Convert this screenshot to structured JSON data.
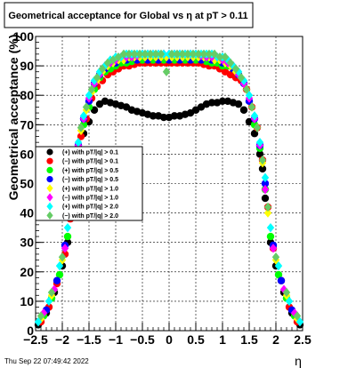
{
  "chart_data": {
    "type": "scatter",
    "title": "Geometrical acceptance for Global vs   η at pT > 0.11",
    "ylabel": "Geometrical acceptance (%)",
    "xlabel": "η",
    "xlim": [
      -2.5,
      2.5
    ],
    "ylim": [
      0,
      100
    ],
    "xticks": [
      "−2.5",
      "−2",
      "−1.5",
      "−1",
      "−0.5",
      "0",
      "0.5",
      "1",
      "1.5",
      "2",
      "2.5"
    ],
    "yticks": [
      "0",
      "10",
      "20",
      "30",
      "40",
      "50",
      "60",
      "70",
      "80",
      "90",
      "100"
    ],
    "grid": true,
    "legend_position": "left-middle",
    "timestamp": "Thu Sep 22 07:49:42 2022",
    "series": [
      {
        "name": "(+) with pT/|q| > 0.1",
        "color": "#000000",
        "marker": "circle",
        "x": [
          -2.45,
          -2.3,
          -2.15,
          -2.0,
          -1.9,
          -1.8,
          -1.75,
          -1.7,
          -1.6,
          -1.5,
          -1.4,
          -1.3,
          -1.2,
          -1.1,
          -1.0,
          -0.9,
          -0.8,
          -0.7,
          -0.6,
          -0.5,
          -0.4,
          -0.3,
          -0.2,
          -0.1,
          0.0,
          0.1,
          0.2,
          0.3,
          0.4,
          0.5,
          0.6,
          0.7,
          0.8,
          0.9,
          1.0,
          1.1,
          1.2,
          1.3,
          1.4,
          1.5,
          1.6,
          1.7,
          1.75,
          1.8,
          1.9,
          2.0,
          2.15,
          2.3,
          2.45
        ],
        "y": [
          2,
          6,
          13,
          22,
          30,
          45,
          55,
          60,
          67,
          71,
          75,
          77,
          78,
          77.5,
          77,
          76.5,
          76,
          75,
          74.5,
          74,
          73.5,
          73,
          73,
          72.5,
          72.5,
          73,
          73,
          73.5,
          74,
          75,
          76,
          77,
          77.5,
          77.5,
          78,
          78,
          77.5,
          77,
          75,
          71,
          67,
          60,
          55,
          45,
          30,
          22,
          13,
          6,
          2
        ]
      },
      {
        "name": "(−) with pT/|q| > 0.1",
        "color": "#ff0000",
        "marker": "circle",
        "x": [
          -2.4,
          -2.25,
          -2.1,
          -1.95,
          -1.85,
          -1.75,
          -1.65,
          -1.55,
          -1.45,
          -1.35,
          -1.25,
          -1.15,
          -1.05,
          -0.95,
          -0.85,
          -0.75,
          -0.65,
          -0.55,
          -0.45,
          -0.35,
          -0.25,
          -0.15,
          -0.05,
          0.05,
          0.15,
          0.25,
          0.35,
          0.45,
          0.55,
          0.65,
          0.75,
          0.85,
          0.95,
          1.05,
          1.15,
          1.25,
          1.35,
          1.45,
          1.55,
          1.65,
          1.75,
          1.85,
          1.95,
          2.1,
          2.25,
          2.4
        ],
        "y": [
          3,
          8,
          16,
          26,
          38,
          55,
          66,
          72,
          79,
          83,
          85,
          87,
          88,
          89,
          90,
          90,
          90.5,
          91,
          91,
          91,
          91,
          91,
          91,
          91,
          91,
          91,
          91,
          91,
          91,
          90.5,
          90,
          90,
          89,
          88,
          87,
          86,
          85,
          82,
          76,
          69,
          58,
          42,
          28,
          17,
          8,
          3
        ]
      },
      {
        "name": "(+) with pT/|q| > 0.5",
        "color": "#00ff00",
        "marker": "circle",
        "x": [
          -2.35,
          -2.2,
          -2.05,
          -1.9,
          -1.8,
          -1.7,
          -1.6,
          -1.5,
          -1.4,
          -1.3,
          -1.2,
          -1.1,
          -1.0,
          -0.9,
          -0.8,
          -0.7,
          -0.6,
          -0.5,
          -0.4,
          -0.3,
          -0.2,
          -0.1,
          0.0,
          0.1,
          0.2,
          0.3,
          0.4,
          0.5,
          0.6,
          0.7,
          0.8,
          0.9,
          1.0,
          1.1,
          1.2,
          1.3,
          1.4,
          1.5,
          1.6,
          1.7,
          1.8,
          1.9,
          2.05,
          2.2,
          2.35
        ],
        "y": [
          5,
          11,
          19,
          32,
          48,
          62,
          70,
          76,
          82,
          86,
          88,
          89,
          90,
          91,
          91,
          91.5,
          92,
          92,
          92,
          92,
          92,
          92,
          92,
          92,
          92,
          92,
          92,
          92,
          92,
          91.5,
          91,
          91,
          90,
          90,
          89,
          87,
          84,
          78,
          70,
          62,
          48,
          32,
          19,
          11,
          5
        ]
      },
      {
        "name": "(−) with pT/|q| > 0.5",
        "color": "#0000ff",
        "marker": "circle",
        "x": [
          -2.3,
          -2.1,
          -1.95,
          -1.8,
          -1.7,
          -1.6,
          -1.5,
          -1.4,
          -1.3,
          -1.2,
          -1.0,
          -0.8,
          -0.6,
          -0.4,
          -0.2,
          0.0,
          0.2,
          0.4,
          0.6,
          0.8,
          1.0,
          1.2,
          1.3,
          1.4,
          1.5,
          1.6,
          1.7,
          1.8,
          1.95,
          2.1,
          2.3
        ],
        "y": [
          7,
          17,
          29,
          50,
          63,
          72,
          78,
          84,
          87,
          89,
          91,
          92,
          92,
          92,
          92,
          92,
          92,
          92,
          92,
          92,
          91,
          89,
          87,
          84,
          78,
          72,
          63,
          50,
          29,
          17,
          7
        ]
      },
      {
        "name": "(+) with pT/|q| > 1.0",
        "color": "#ffff00",
        "marker": "diamond",
        "x": [
          -2.4,
          -2.2,
          -2.0,
          -1.85,
          -1.75,
          -1.65,
          -1.55,
          -1.45,
          -1.35,
          -1.25,
          -1.15,
          -1.05,
          -0.95,
          -0.85,
          -0.75,
          -0.65,
          -0.55,
          -0.45,
          -0.35,
          -0.25,
          -0.15,
          -0.05,
          0.05,
          0.15,
          0.25,
          0.35,
          0.45,
          0.55,
          0.65,
          0.75,
          0.85,
          0.95,
          1.05,
          1.15,
          1.25,
          1.35,
          1.45,
          1.55,
          1.65,
          1.75,
          1.85,
          2.0,
          2.2,
          2.4
        ],
        "y": [
          4,
          12,
          24,
          40,
          57,
          68,
          75,
          81,
          85,
          88,
          90,
          91,
          92,
          92,
          93,
          93,
          93,
          93,
          93,
          93,
          93,
          93,
          93,
          93,
          93,
          93,
          93,
          93,
          93,
          93,
          92,
          92,
          91,
          90,
          88,
          86,
          82,
          76,
          69,
          57,
          40,
          24,
          12,
          4
        ]
      },
      {
        "name": "(−) with pT/|q| > 1.0",
        "color": "#ff00ff",
        "marker": "diamond",
        "x": [
          -2.35,
          -2.15,
          -1.95,
          -1.8,
          -1.7,
          -1.6,
          -1.5,
          -1.4,
          -1.3,
          -1.2,
          -1.1,
          -1.0,
          -0.9,
          -0.8,
          -0.7,
          -0.6,
          -0.5,
          -0.4,
          -0.3,
          -0.2,
          -0.1,
          0.0,
          0.1,
          0.2,
          0.3,
          0.4,
          0.5,
          0.6,
          0.7,
          0.8,
          0.9,
          1.0,
          1.1,
          1.2,
          1.3,
          1.4,
          1.5,
          1.6,
          1.7,
          1.8,
          1.95,
          2.15,
          2.35
        ],
        "y": [
          6,
          14,
          28,
          48,
          63,
          72,
          79,
          84,
          87,
          90,
          91,
          92,
          93,
          93,
          93,
          93.5,
          94,
          94,
          94,
          94,
          94,
          94,
          94,
          94,
          94,
          94,
          94,
          93.5,
          93,
          93,
          93,
          92,
          91,
          90,
          87,
          84,
          79,
          72,
          63,
          48,
          28,
          14,
          6
        ]
      },
      {
        "name": "(+) with pT/|q| > 2.0",
        "color": "#00ffff",
        "marker": "diamond",
        "x": [
          -2.45,
          -2.25,
          -2.05,
          -1.9,
          -1.8,
          -1.7,
          -1.6,
          -1.5,
          -1.4,
          -1.3,
          -1.2,
          -1.1,
          -1.0,
          -0.9,
          -0.8,
          -0.7,
          -0.6,
          -0.5,
          -0.4,
          -0.3,
          -0.2,
          -0.1,
          0.0,
          0.1,
          0.2,
          0.3,
          0.4,
          0.5,
          0.6,
          0.7,
          0.8,
          0.9,
          1.0,
          1.1,
          1.2,
          1.3,
          1.4,
          1.5,
          1.6,
          1.7,
          1.8,
          1.9,
          2.05,
          2.25,
          2.45
        ],
        "y": [
          3,
          10,
          22,
          35,
          52,
          64,
          73,
          80,
          85,
          88,
          90,
          92,
          93,
          93,
          94,
          94,
          94,
          94,
          94,
          94,
          94,
          94,
          94,
          94,
          94,
          94,
          94,
          94,
          94,
          94,
          94,
          93,
          93,
          92,
          90,
          88,
          85,
          80,
          73,
          64,
          52,
          35,
          22,
          10,
          3
        ]
      },
      {
        "name": "(−) with pT/|q| > 2.0",
        "color": "#66cc66",
        "marker": "diamond",
        "x": [
          -2.4,
          -2.2,
          -2.0,
          -1.85,
          -1.75,
          -1.65,
          -1.55,
          -1.45,
          -1.35,
          -1.25,
          -1.15,
          -1.05,
          -0.95,
          -0.85,
          -0.75,
          -0.65,
          -0.55,
          -0.45,
          -0.35,
          -0.25,
          -0.15,
          -0.05,
          0.05,
          0.15,
          0.25,
          0.35,
          0.45,
          0.55,
          0.65,
          0.75,
          0.85,
          0.95,
          1.05,
          1.15,
          1.25,
          1.35,
          1.45,
          1.55,
          1.65,
          1.75,
          1.85,
          2.0,
          2.2,
          2.4
        ],
        "y": [
          5,
          13,
          25,
          42,
          58,
          69,
          76,
          82,
          86,
          89,
          91,
          92,
          93,
          94,
          94,
          94,
          94,
          94,
          94,
          94,
          94,
          88,
          94,
          94,
          94,
          94,
          94,
          94,
          94,
          94,
          94,
          93,
          93,
          91,
          89,
          86,
          82,
          76,
          69,
          58,
          42,
          25,
          13,
          5
        ]
      }
    ]
  }
}
